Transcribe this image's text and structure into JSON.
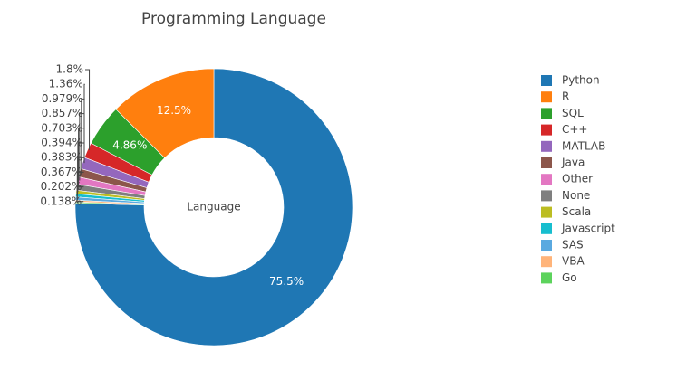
{
  "chart_data": {
    "type": "donut",
    "title": "Programming Language",
    "center_text": "Language",
    "categories": [
      "Python",
      "R",
      "SQL",
      "C++",
      "MATLAB",
      "Java",
      "Other",
      "None",
      "Scala",
      "Javascript",
      "SAS",
      "VBA",
      "Go"
    ],
    "values": [
      75.5,
      12.5,
      4.86,
      1.8,
      1.36,
      0.979,
      0.857,
      0.703,
      0.394,
      0.383,
      0.367,
      0.202,
      0.138
    ],
    "value_labels": [
      "75.5%",
      "12.5%",
      "4.86%",
      "1.8%",
      "1.36%",
      "0.979%",
      "0.857%",
      "0.703%",
      "0.394%",
      "0.383%",
      "0.367%",
      "0.202%",
      "0.138%"
    ],
    "colors": [
      "#1f77b4",
      "#ff7f0e",
      "#2ca02c",
      "#d62728",
      "#9467bd",
      "#8c564b",
      "#e377c2",
      "#7f7f7f",
      "#bcbd22",
      "#17becf",
      "#5aa9e0",
      "#ffb47a",
      "#5cd35c"
    ],
    "legend": "right"
  }
}
